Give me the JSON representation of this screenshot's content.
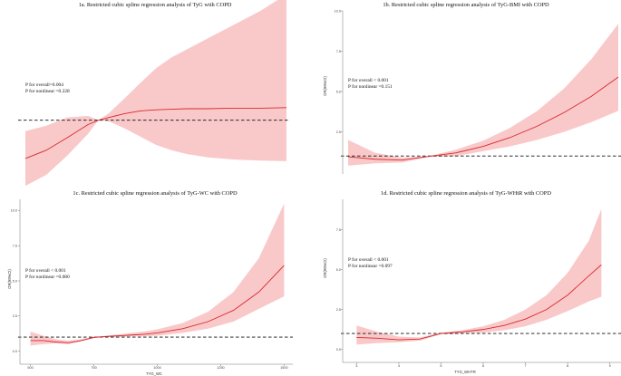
{
  "colors": {
    "band": "#f7b7b8",
    "curve": "#d8282d",
    "reference_line": "#111111",
    "axis": "#777777"
  },
  "chart_data": [
    {
      "id": "1a",
      "type": "line",
      "title": "1a. Restricted cubic spline regression analysis of TyG with COPD",
      "xlabel": "",
      "ylabel": "",
      "xlim": [
        0,
        100
      ],
      "ylim": [
        0,
        3
      ],
      "xticks": [],
      "yticks": [],
      "reference_y": 1,
      "annotations": [
        "P for overall=0.004",
        "P for nonlinear =0.228"
      ],
      "x": [
        0,
        8,
        16,
        24,
        28,
        32,
        38,
        44,
        50,
        56,
        62,
        70,
        80,
        90,
        100
      ],
      "y": [
        0.3,
        0.45,
        0.68,
        0.92,
        1.0,
        1.05,
        1.12,
        1.17,
        1.19,
        1.2,
        1.21,
        1.21,
        1.22,
        1.22,
        1.23
      ],
      "lower": [
        -0.2,
        0.0,
        0.35,
        0.75,
        1.0,
        0.98,
        0.85,
        0.7,
        0.55,
        0.45,
        0.38,
        0.32,
        0.28,
        0.26,
        0.25
      ],
      "upper": [
        0.8,
        0.9,
        1.05,
        1.08,
        1.0,
        1.13,
        1.4,
        1.68,
        1.95,
        2.15,
        2.3,
        2.5,
        2.75,
        3.0,
        3.3
      ]
    },
    {
      "id": "1b",
      "type": "line",
      "title": "1b. Restricted cubic spline regression analysis of TyG-BMI with COPD",
      "xlabel": "",
      "ylabel": "OR(95%CI)",
      "xlim": [
        0,
        100
      ],
      "ylim": [
        0,
        10
      ],
      "xticks": [],
      "yticks": [
        2.5,
        5.0,
        7.5,
        10.0
      ],
      "ytick_labels": [
        "2.5",
        "5.0",
        "7.5",
        "10.0"
      ],
      "reference_y": 1,
      "annotations": [
        "P for overall < 0.001",
        "P for nonlinear =0.151"
      ],
      "x": [
        0,
        10,
        20,
        30,
        40,
        50,
        60,
        70,
        80,
        90,
        100
      ],
      "y": [
        0.95,
        0.8,
        0.75,
        0.98,
        1.2,
        1.6,
        2.15,
        2.85,
        3.7,
        4.7,
        5.9
      ],
      "lower": [
        0.4,
        0.55,
        0.6,
        0.95,
        1.0,
        1.3,
        1.6,
        2.0,
        2.5,
        3.1,
        3.8
      ],
      "upper": [
        2.0,
        1.2,
        0.9,
        1.0,
        1.4,
        1.95,
        2.75,
        3.8,
        5.2,
        7.0,
        9.2
      ]
    },
    {
      "id": "1c",
      "type": "line",
      "title": "1c. Restricted cubic spline regression analysis of TyG-WC with COPD",
      "xlabel": "TYG_WC",
      "ylabel": "OR(95%CI)",
      "xlim": [
        480,
        1520
      ],
      "ylim": [
        -0.8,
        10.8
      ],
      "xticks": [
        500,
        750,
        1000,
        1250,
        1500
      ],
      "xtick_labels": [
        "500",
        "750",
        "1000",
        "1250",
        "1500"
      ],
      "yticks": [
        0.0,
        2.5,
        5.0,
        7.5,
        10.0
      ],
      "ytick_labels": [
        "0.0",
        "2.5",
        "5.0",
        "7.5",
        "10.0"
      ],
      "reference_y": 1,
      "annotations": [
        "P for overall < 0.001",
        "P for nonlinear =0.080"
      ],
      "x": [
        500,
        550,
        600,
        650,
        700,
        750,
        800,
        850,
        900,
        950,
        1000,
        1100,
        1200,
        1300,
        1400,
        1500
      ],
      "y": [
        0.75,
        0.75,
        0.65,
        0.6,
        0.75,
        0.98,
        1.05,
        1.1,
        1.15,
        1.2,
        1.3,
        1.6,
        2.1,
        2.9,
        4.2,
        6.1
      ],
      "lower": [
        0.4,
        0.5,
        0.55,
        0.5,
        0.7,
        0.95,
        1.0,
        1.0,
        1.05,
        1.05,
        1.1,
        1.3,
        1.6,
        2.1,
        3.0,
        3.9
      ],
      "upper": [
        1.4,
        1.1,
        0.85,
        0.75,
        0.85,
        1.02,
        1.1,
        1.2,
        1.3,
        1.4,
        1.55,
        2.0,
        2.8,
        4.2,
        6.6,
        10.5
      ]
    },
    {
      "id": "1d",
      "type": "line",
      "title": "1d. Restricted cubic spline regression analysis of TyG-WHtR with COPD",
      "xlabel": "TYG_WHTR",
      "ylabel": "OR(95%CI)",
      "xlim": [
        2.8,
        9.2
      ],
      "ylim": [
        -0.7,
        9.4
      ],
      "xticks": [
        3,
        4,
        5,
        6,
        7,
        8,
        9
      ],
      "xtick_labels": [
        "3",
        "4",
        "5",
        "6",
        "7",
        "8",
        "9"
      ],
      "yticks": [
        0.0,
        2.5,
        5.0,
        7.5
      ],
      "ytick_labels": [
        "0.0",
        "2.5",
        "5.0",
        "7.5"
      ],
      "reference_y": 1,
      "annotations": [
        "P for overall < 0.001",
        "P for nonlinear =0.097"
      ],
      "x": [
        3.0,
        3.5,
        4.0,
        4.5,
        5.0,
        5.5,
        6.0,
        6.5,
        7.0,
        7.5,
        8.0,
        8.5,
        8.8
      ],
      "y": [
        0.75,
        0.7,
        0.6,
        0.65,
        1.0,
        1.1,
        1.25,
        1.5,
        1.9,
        2.5,
        3.4,
        4.6,
        5.3
      ],
      "lower": [
        0.3,
        0.4,
        0.45,
        0.55,
        0.95,
        1.0,
        1.05,
        1.2,
        1.45,
        1.85,
        2.4,
        3.0,
        3.3
      ],
      "upper": [
        1.5,
        1.1,
        0.8,
        0.75,
        1.05,
        1.2,
        1.45,
        1.85,
        2.5,
        3.4,
        4.8,
        6.8,
        8.8
      ]
    }
  ]
}
